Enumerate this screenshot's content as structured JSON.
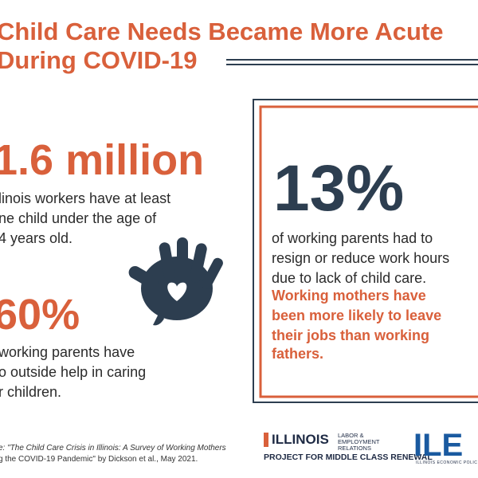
{
  "header": {
    "title_lines": [
      "Child Care Needs Became More Acute",
      "During COVID-19"
    ]
  },
  "left": {
    "stat1": {
      "value": "1.6 million",
      "lines": [
        "linois workers have at least",
        "ne child under the age of",
        "4 years old."
      ]
    },
    "stat2": {
      "value": "60%",
      "lines": [
        "working parents have",
        "o outside help in caring",
        "r children."
      ]
    }
  },
  "right": {
    "value": "13%",
    "lines": [
      "of working parents had to",
      "resign or reduce work hours",
      "due to lack of child care."
    ],
    "highlight": [
      "Working mothers have",
      "been more likely to leave",
      "their jobs than working",
      "fathers."
    ]
  },
  "footer": {
    "source": [
      "e: \"The Child Care Crisis in Illinois: A Survey of Working Mothers",
      "g the COVID-19 Pandemic\" by Dickson et al., May 2021."
    ],
    "logo": {
      "name": "ILLINOIS",
      "unit": "LABOR & EMPLOYMENT RELATIONS",
      "project": "PROJECT FOR MIDDLE CLASS RENEWAL"
    },
    "ilepi": {
      "name": "ILE",
      "sub": "ILLINOIS ECONOMIC POLIC"
    }
  }
}
